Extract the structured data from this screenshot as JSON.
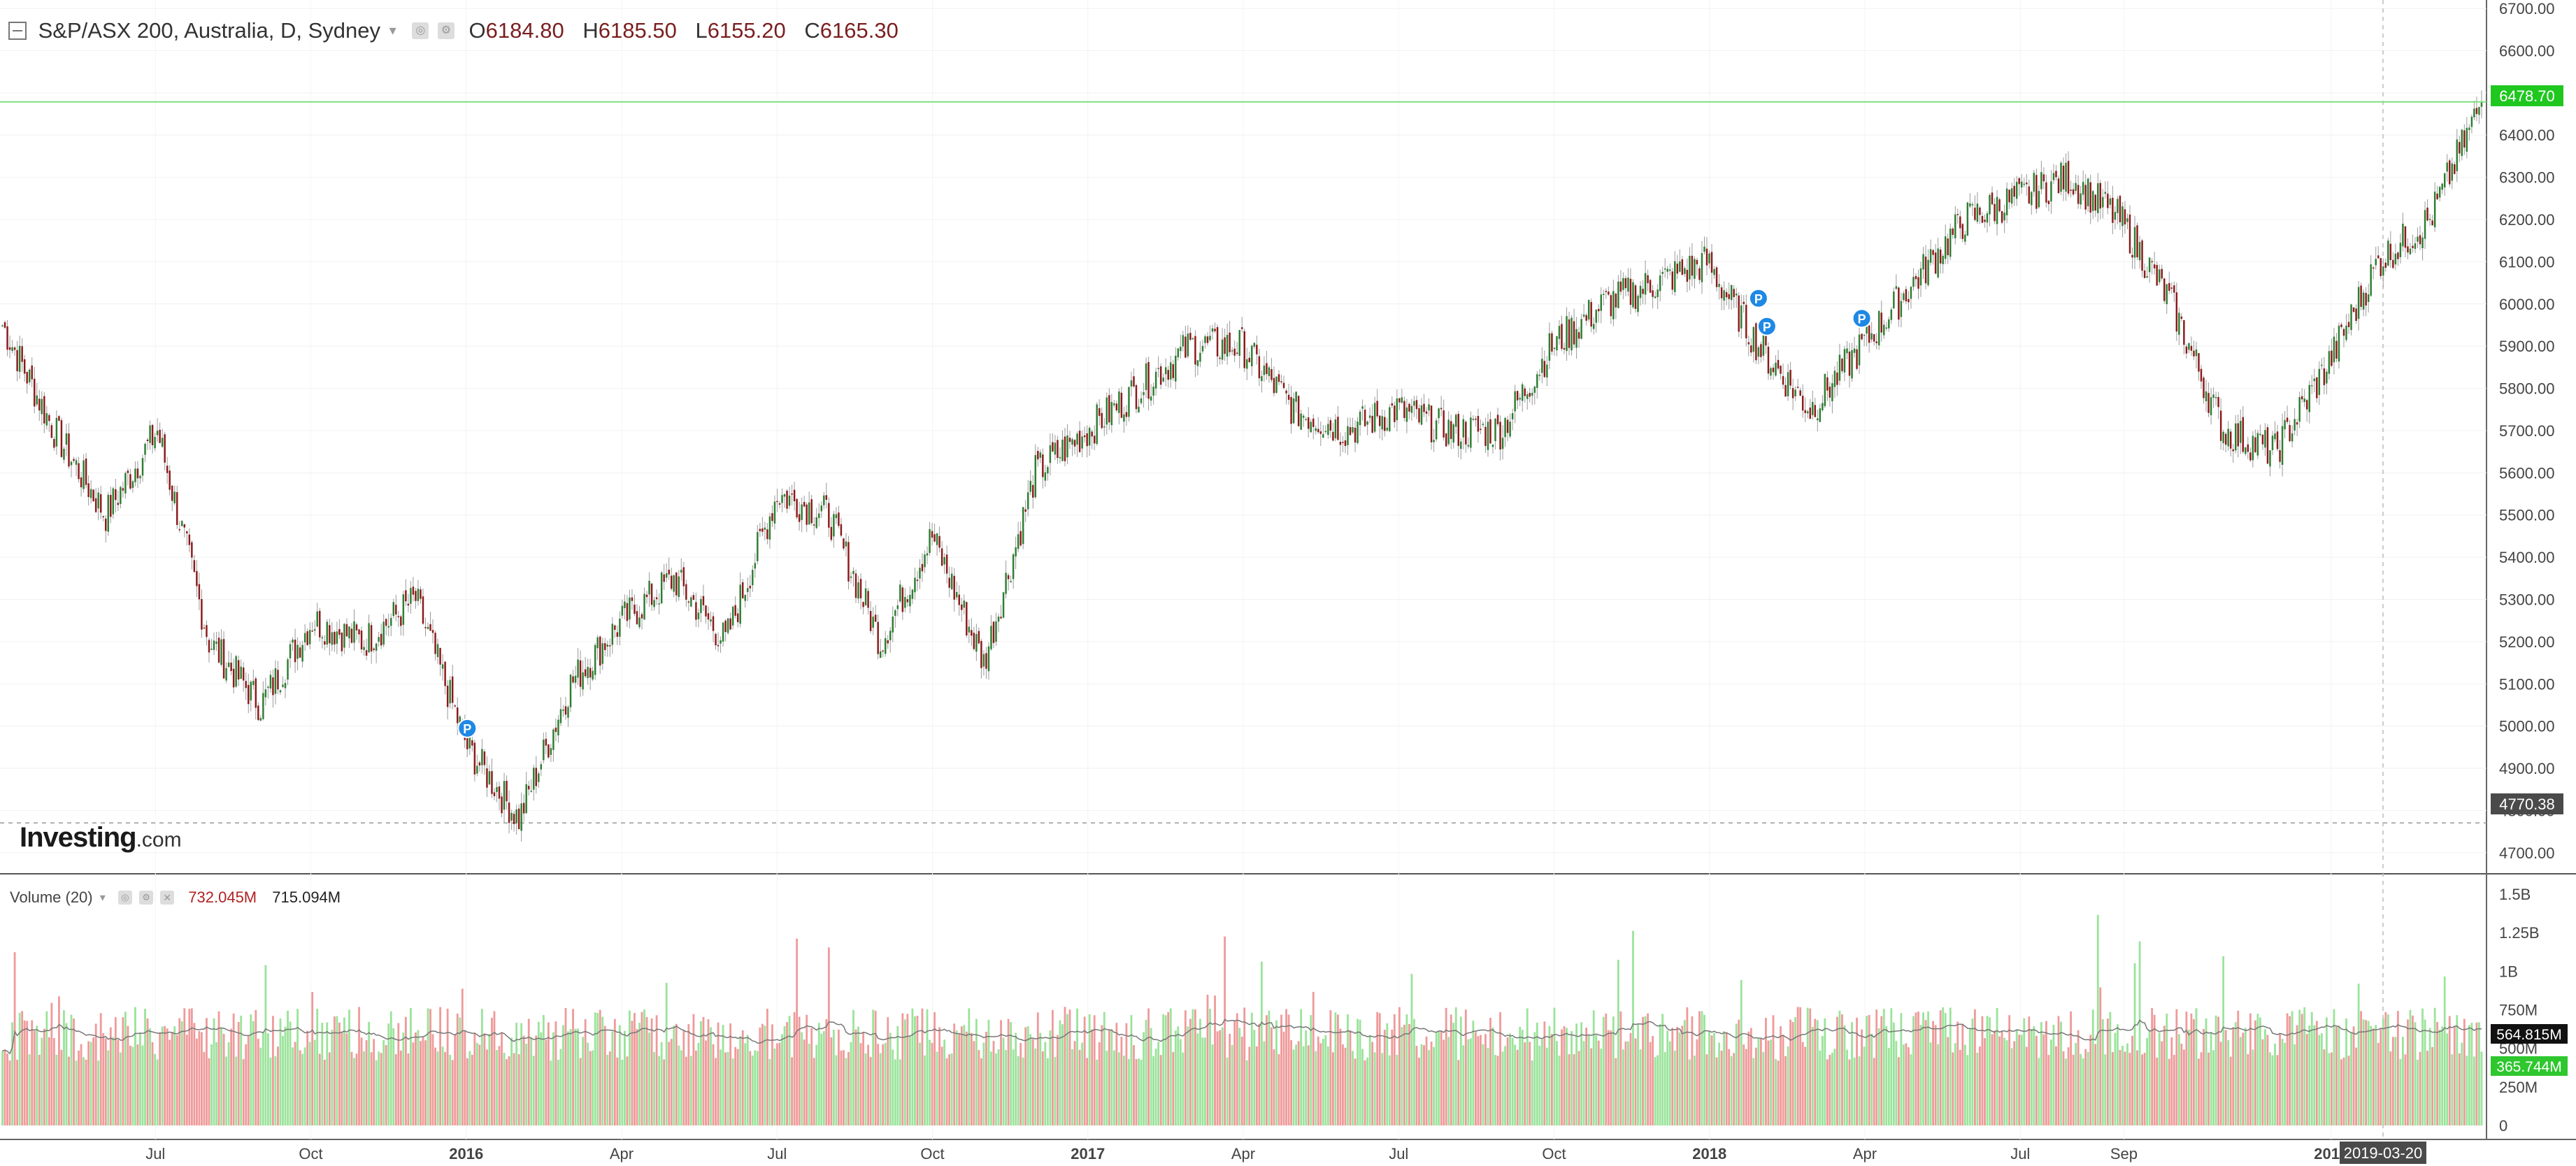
{
  "header": {
    "symbol": "S&P/ASX 200, Australia, D, Sydney",
    "ohlc": [
      {
        "label": "O",
        "value": "6184.80"
      },
      {
        "label": "H",
        "value": "6185.50"
      },
      {
        "label": "L",
        "value": "6155.20"
      },
      {
        "label": "C",
        "value": "6165.30"
      }
    ]
  },
  "volume_header": {
    "title": "Volume (20)",
    "value_red": "732.045M",
    "value_black": "715.094M"
  },
  "watermark": {
    "brand": "Investing",
    "suffix": ".com"
  },
  "price_axis": {
    "ticks": [
      "6700.00",
      "6600.00",
      "6500.00",
      "6400.00",
      "6300.00",
      "6200.00",
      "6100.00",
      "6000.00",
      "5900.00",
      "5800.00",
      "5700.00",
      "5600.00",
      "5500.00",
      "5400.00",
      "5300.00",
      "5200.00",
      "5100.00",
      "5000.00",
      "4900.00",
      "4800.00",
      "4700.00"
    ],
    "last_price_label": "6478.70",
    "crosshair_price_label": "4770.38"
  },
  "volume_axis": {
    "ticks": [
      "1.5B",
      "1.25B",
      "1B",
      "750M",
      "500M",
      "250M",
      "0"
    ],
    "ma_label": "564.815M",
    "last_label": "365.744M"
  },
  "time_axis": {
    "labels": [
      "Jul",
      "Oct",
      "2016",
      "Apr",
      "Jul",
      "Oct",
      "2017",
      "Apr",
      "Jul",
      "Oct",
      "2018",
      "Apr",
      "Jul",
      "Sep",
      "2019"
    ],
    "crosshair_date": "2019-03-20"
  },
  "chart_data": [
    {
      "type": "candlestick",
      "title": "S&P/ASX 200, Australia, D, Sydney",
      "ylim": [
        4650,
        6720
      ],
      "x_range": [
        "2015-04",
        "2019-04"
      ],
      "x": [
        "2015-04",
        "2015-05",
        "2015-06",
        "2015-07",
        "2015-08",
        "2015-09",
        "2015-10",
        "2015-11",
        "2015-12",
        "2016-01",
        "2016-02",
        "2016-03",
        "2016-04",
        "2016-05",
        "2016-06",
        "2016-07",
        "2016-08",
        "2016-09",
        "2016-10",
        "2016-11",
        "2016-12",
        "2017-01",
        "2017-02",
        "2017-03",
        "2017-04",
        "2017-05",
        "2017-06",
        "2017-07",
        "2017-08",
        "2017-09",
        "2017-10",
        "2017-11",
        "2017-12",
        "2018-01",
        "2018-02",
        "2018-03",
        "2018-04",
        "2018-05",
        "2018-06",
        "2018-07",
        "2018-08",
        "2018-09",
        "2018-10",
        "2018-11",
        "2018-12",
        "2019-01",
        "2019-02",
        "2019-03",
        "2019-04"
      ],
      "close": [
        5950,
        5700,
        5500,
        5700,
        5200,
        5050,
        5250,
        5200,
        5300,
        4950,
        4780,
        5100,
        5250,
        5350,
        5200,
        5550,
        5500,
        5200,
        5450,
        5150,
        5600,
        5700,
        5800,
        5900,
        5900,
        5750,
        5700,
        5750,
        5700,
        5700,
        5900,
        6000,
        6050,
        6100,
        5900,
        5750,
        5900,
        6050,
        6200,
        6250,
        6300,
        6200,
        6000,
        5700,
        5650,
        5850,
        6100,
        6200,
        6478.7
      ],
      "last_price": 6478.7,
      "crosshair_price": 4770.38,
      "markers": [
        {
          "x": "2016-01",
          "label": "P"
        },
        {
          "x": "2018-02",
          "label": "P"
        },
        {
          "x": "2018-02",
          "label": "P"
        },
        {
          "x": "2018-04",
          "label": "P"
        }
      ]
    },
    {
      "type": "bar",
      "title": "Volume (20)",
      "ylim": [
        0,
        1550000000
      ],
      "moving_average_period": 20,
      "last_volume": 365744000,
      "last_ma": 564815000,
      "crosshair_date": "2019-03-20"
    }
  ]
}
